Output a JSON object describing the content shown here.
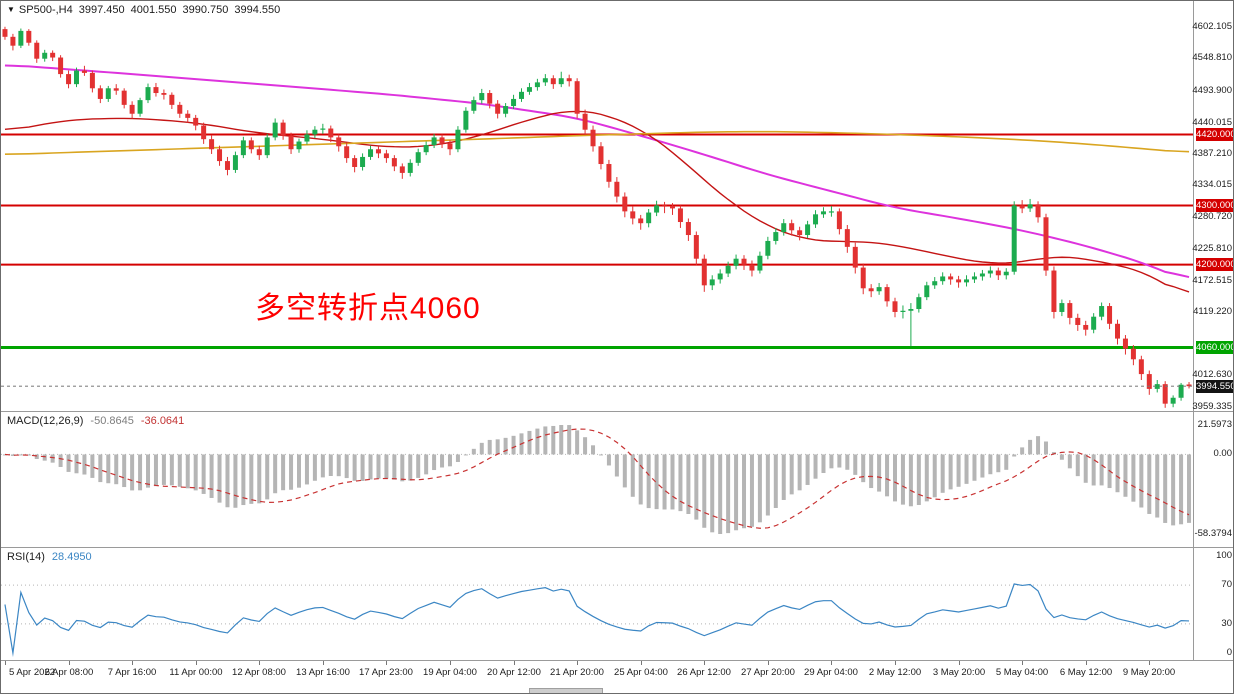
{
  "icons": {
    "collapse_arrow": "▼"
  },
  "header": {
    "symbol": "SP500-,H4",
    "open": "3997.450",
    "high": "4001.550",
    "low": "3990.750",
    "close": "3994.550"
  },
  "annotation": {
    "text": "多空转折点4060",
    "color": "#fe0000"
  },
  "price_axis": {
    "labels": [
      {
        "text": "4602.105",
        "value": 4602.105
      },
      {
        "text": "4548.810",
        "value": 4548.81
      },
      {
        "text": "4493.900",
        "value": 4493.9
      },
      {
        "text": "4440.015",
        "value": 4440.015
      },
      {
        "text": "4387.210",
        "value": 4387.21
      },
      {
        "text": "4334.015",
        "value": 4334.015
      },
      {
        "text": "4280.720",
        "value": 4280.72
      },
      {
        "text": "4225.810",
        "value": 4225.81
      },
      {
        "text": "4172.515",
        "value": 4172.515
      },
      {
        "text": "4119.220",
        "value": 4119.22
      },
      {
        "text": "4012.630",
        "value": 4012.63
      },
      {
        "text": "3959.335",
        "value": 3959.335
      }
    ],
    "badges": [
      {
        "name": "level-badge-4420",
        "text": "4420.000",
        "value": 4420,
        "bg": "#d40000"
      },
      {
        "name": "level-badge-4300",
        "text": "4300.000",
        "value": 4300,
        "bg": "#d40000"
      },
      {
        "name": "level-badge-4200",
        "text": "4200.000",
        "value": 4200,
        "bg": "#d40000"
      },
      {
        "name": "level-badge-4060",
        "text": "4060.000",
        "value": 4060,
        "bg": "#00a400"
      },
      {
        "name": "current-price-badge",
        "text": "3994.550",
        "value": 3994.55,
        "bg": "#141414"
      }
    ]
  },
  "macd_panel": {
    "label": "MACD(12,26,9)",
    "value_main": "-50.8645",
    "value_signal": "-36.0641",
    "axis": [
      {
        "text": "21.5973",
        "value": 21.5973
      },
      {
        "text": "0.00",
        "value": 0
      },
      {
        "text": "-58.3794",
        "value": -58.3794
      }
    ]
  },
  "rsi_panel": {
    "label": "RSI(14)",
    "value": "28.4950",
    "axis": [
      {
        "text": "100",
        "value": 100
      },
      {
        "text": "70",
        "value": 70
      },
      {
        "text": "30",
        "value": 30
      },
      {
        "text": "0",
        "value": 0
      }
    ]
  },
  "time_axis": {
    "candles_per_label": 8,
    "labels": [
      "5 Apr 2022",
      "6 Apr 08:00",
      "7 Apr 16:00",
      "11 Apr 00:00",
      "12 Apr 08:00",
      "13 Apr 16:00",
      "17 Apr 23:00",
      "19 Apr 04:00",
      "20 Apr 12:00",
      "21 Apr 20:00",
      "25 Apr 04:00",
      "26 Apr 12:00",
      "27 Apr 20:00",
      "29 Apr 04:00",
      "2 May 12:00",
      "3 May 20:00",
      "5 May 04:00",
      "6 May 12:00",
      "9 May 20:00"
    ]
  },
  "chart_data": {
    "type": "candlestick",
    "symbol": "SP500-",
    "timeframe": "H4",
    "price_range": [
      3956,
      4632
    ],
    "colors": {
      "up": "#1cab4f",
      "down": "#e23131"
    },
    "hlines": [
      {
        "price": 4420,
        "color": "#d40000",
        "line_width": 2,
        "label": "4420.000"
      },
      {
        "price": 4300,
        "color": "#d40000",
        "line_width": 2,
        "label": "4300.000"
      },
      {
        "price": 4200,
        "color": "#d40000",
        "line_width": 2,
        "label": "4200.000"
      },
      {
        "price": 4060,
        "color": "#00a400",
        "line_width": 3,
        "label": "4060.000"
      }
    ],
    "current_price": {
      "price": 3994.55,
      "label": "3994.550"
    },
    "moving_averages": [
      {
        "name": "ma-slow-magenta",
        "color": "#dd33dd",
        "line_width": 2,
        "points": [
          [
            0,
            4538
          ],
          [
            16,
            4522
          ],
          [
            32,
            4505
          ],
          [
            48,
            4488
          ],
          [
            60,
            4472
          ],
          [
            72,
            4448
          ],
          [
            80,
            4418
          ],
          [
            88,
            4386
          ],
          [
            96,
            4352
          ],
          [
            104,
            4324
          ],
          [
            112,
            4296
          ],
          [
            120,
            4278
          ],
          [
            128,
            4258
          ],
          [
            136,
            4232
          ],
          [
            144,
            4200
          ],
          [
            149,
            4170
          ]
        ]
      },
      {
        "name": "ma-fast-red",
        "color": "#c41414",
        "line_width": 1.4,
        "points": [
          [
            0,
            4425
          ],
          [
            8,
            4445
          ],
          [
            16,
            4448
          ],
          [
            24,
            4440
          ],
          [
            32,
            4422
          ],
          [
            40,
            4412
          ],
          [
            48,
            4398
          ],
          [
            54,
            4400
          ],
          [
            60,
            4418
          ],
          [
            66,
            4446
          ],
          [
            72,
            4464
          ],
          [
            76,
            4452
          ],
          [
            80,
            4430
          ],
          [
            84,
            4392
          ],
          [
            88,
            4342
          ],
          [
            92,
            4298
          ],
          [
            96,
            4264
          ],
          [
            100,
            4244
          ],
          [
            104,
            4238
          ],
          [
            108,
            4240
          ],
          [
            112,
            4233
          ],
          [
            116,
            4222
          ],
          [
            120,
            4210
          ],
          [
            124,
            4201
          ],
          [
            128,
            4203
          ],
          [
            132,
            4216
          ],
          [
            136,
            4210
          ],
          [
            140,
            4199
          ],
          [
            144,
            4186
          ],
          [
            149,
            4140
          ]
        ]
      },
      {
        "name": "ma-long-orange",
        "color": "#d9a520",
        "line_width": 1.6,
        "points": [
          [
            0,
            4386
          ],
          [
            16,
            4393
          ],
          [
            32,
            4400
          ],
          [
            48,
            4407
          ],
          [
            64,
            4414
          ],
          [
            72,
            4418
          ],
          [
            80,
            4421
          ],
          [
            88,
            4424
          ],
          [
            96,
            4425
          ],
          [
            104,
            4423
          ],
          [
            112,
            4420
          ],
          [
            120,
            4416
          ],
          [
            128,
            4411
          ],
          [
            136,
            4404
          ],
          [
            144,
            4395
          ],
          [
            149,
            4389
          ]
        ]
      }
    ],
    "macd": {
      "fast": 12,
      "slow": 26,
      "signal": 9,
      "range": [
        -58.3794,
        21.5973
      ],
      "hist_color": "#b5b5b5",
      "signal_color": "#c83232"
    },
    "rsi": {
      "period": 14,
      "levels": [
        70,
        30
      ],
      "range": [
        0,
        100
      ],
      "color": "#3b86c4"
    },
    "candles": [
      [
        4598,
        4602,
        4580,
        4585
      ],
      [
        4585,
        4590,
        4562,
        4570
      ],
      [
        4570,
        4599,
        4566,
        4595
      ],
      [
        4595,
        4598,
        4570,
        4575
      ],
      [
        4575,
        4579,
        4541,
        4548
      ],
      [
        4548,
        4563,
        4543,
        4558
      ],
      [
        4558,
        4562,
        4544,
        4550
      ],
      [
        4550,
        4554,
        4516,
        4522
      ],
      [
        4522,
        4528,
        4498,
        4505
      ],
      [
        4505,
        4533,
        4500,
        4528
      ],
      [
        4528,
        4536,
        4519,
        4524
      ],
      [
        4524,
        4528,
        4491,
        4498
      ],
      [
        4498,
        4503,
        4473,
        4480
      ],
      [
        4480,
        4502,
        4475,
        4498
      ],
      [
        4498,
        4505,
        4487,
        4494
      ],
      [
        4494,
        4498,
        4464,
        4470
      ],
      [
        4470,
        4476,
        4447,
        4455
      ],
      [
        4455,
        4482,
        4450,
        4478
      ],
      [
        4478,
        4506,
        4473,
        4500
      ],
      [
        4500,
        4507,
        4484,
        4490
      ],
      [
        4490,
        4496,
        4479,
        4487
      ],
      [
        4487,
        4491,
        4463,
        4470
      ],
      [
        4470,
        4475,
        4448,
        4455
      ],
      [
        4455,
        4461,
        4440,
        4448
      ],
      [
        4448,
        4453,
        4427,
        4435
      ],
      [
        4435,
        4440,
        4404,
        4412
      ],
      [
        4412,
        4418,
        4387,
        4395
      ],
      [
        4395,
        4401,
        4367,
        4375
      ],
      [
        4375,
        4382,
        4351,
        4360
      ],
      [
        4360,
        4391,
        4355,
        4385
      ],
      [
        4385,
        4416,
        4380,
        4410
      ],
      [
        4410,
        4415,
        4388,
        4395
      ],
      [
        4395,
        4401,
        4377,
        4385
      ],
      [
        4385,
        4421,
        4380,
        4415
      ],
      [
        4415,
        4447,
        4410,
        4440
      ],
      [
        4440,
        4445,
        4411,
        4418
      ],
      [
        4418,
        4423,
        4387,
        4395
      ],
      [
        4395,
        4413,
        4389,
        4408
      ],
      [
        4408,
        4427,
        4403,
        4420
      ],
      [
        4420,
        4434,
        4414,
        4428
      ],
      [
        4428,
        4438,
        4421,
        4430
      ],
      [
        4430,
        4435,
        4407,
        4415
      ],
      [
        4415,
        4420,
        4391,
        4400
      ],
      [
        4400,
        4406,
        4372,
        4380
      ],
      [
        4380,
        4385,
        4356,
        4365
      ],
      [
        4365,
        4388,
        4359,
        4382
      ],
      [
        4382,
        4401,
        4377,
        4395
      ],
      [
        4395,
        4400,
        4380,
        4388
      ],
      [
        4388,
        4394,
        4372,
        4380
      ],
      [
        4380,
        4385,
        4358,
        4366
      ],
      [
        4366,
        4371,
        4345,
        4355
      ],
      [
        4355,
        4378,
        4349,
        4372
      ],
      [
        4372,
        4396,
        4367,
        4390
      ],
      [
        4390,
        4408,
        4385,
        4402
      ],
      [
        4402,
        4421,
        4397,
        4415
      ],
      [
        4415,
        4420,
        4397,
        4405
      ],
      [
        4405,
        4410,
        4385,
        4395
      ],
      [
        4395,
        4434,
        4390,
        4428
      ],
      [
        4428,
        4466,
        4423,
        4460
      ],
      [
        4460,
        4484,
        4455,
        4478
      ],
      [
        4478,
        4497,
        4472,
        4490
      ],
      [
        4490,
        4495,
        4464,
        4472
      ],
      [
        4472,
        4478,
        4447,
        4455
      ],
      [
        4455,
        4473,
        4449,
        4468
      ],
      [
        4468,
        4487,
        4463,
        4480
      ],
      [
        4480,
        4498,
        4475,
        4492
      ],
      [
        4492,
        4507,
        4487,
        4500
      ],
      [
        4500,
        4514,
        4494,
        4508
      ],
      [
        4508,
        4522,
        4502,
        4515
      ],
      [
        4515,
        4520,
        4497,
        4505
      ],
      [
        4505,
        4526,
        4500,
        4515
      ],
      [
        4515,
        4521,
        4501,
        4510
      ],
      [
        4510,
        4515,
        4447,
        4455
      ],
      [
        4455,
        4462,
        4419,
        4428
      ],
      [
        4428,
        4435,
        4391,
        4400
      ],
      [
        4400,
        4407,
        4361,
        4370
      ],
      [
        4370,
        4377,
        4330,
        4340
      ],
      [
        4340,
        4348,
        4305,
        4315
      ],
      [
        4315,
        4322,
        4280,
        4290
      ],
      [
        4290,
        4298,
        4268,
        4278
      ],
      [
        4278,
        4284,
        4259,
        4270
      ],
      [
        4270,
        4294,
        4263,
        4288
      ],
      [
        4288,
        4308,
        4282,
        4300
      ],
      [
        4300,
        4306,
        4287,
        4298
      ],
      [
        4298,
        4304,
        4284,
        4295
      ],
      [
        4295,
        4300,
        4262,
        4272
      ],
      [
        4272,
        4278,
        4240,
        4250
      ],
      [
        4250,
        4256,
        4199,
        4210
      ],
      [
        4210,
        4217,
        4154,
        4165
      ],
      [
        4165,
        4182,
        4157,
        4175
      ],
      [
        4175,
        4192,
        4168,
        4185
      ],
      [
        4185,
        4205,
        4179,
        4198
      ],
      [
        4198,
        4217,
        4192,
        4210
      ],
      [
        4210,
        4216,
        4191,
        4200
      ],
      [
        4200,
        4207,
        4180,
        4190
      ],
      [
        4190,
        4222,
        4185,
        4215
      ],
      [
        4215,
        4247,
        4209,
        4240
      ],
      [
        4240,
        4262,
        4234,
        4255
      ],
      [
        4255,
        4277,
        4249,
        4270
      ],
      [
        4270,
        4276,
        4249,
        4258
      ],
      [
        4258,
        4264,
        4241,
        4250
      ],
      [
        4250,
        4274,
        4245,
        4268
      ],
      [
        4268,
        4292,
        4262,
        4285
      ],
      [
        4285,
        4297,
        4279,
        4290
      ],
      [
        4290,
        4299,
        4281,
        4290
      ],
      [
        4290,
        4295,
        4251,
        4260
      ],
      [
        4260,
        4267,
        4220,
        4230
      ],
      [
        4230,
        4237,
        4185,
        4195
      ],
      [
        4195,
        4202,
        4150,
        4160
      ],
      [
        4160,
        4167,
        4145,
        4155
      ],
      [
        4155,
        4169,
        4149,
        4162
      ],
      [
        4162,
        4167,
        4129,
        4138
      ],
      [
        4138,
        4144,
        4111,
        4120
      ],
      [
        4120,
        4131,
        4109,
        4122
      ],
      [
        4122,
        4135,
        4062,
        4125
      ],
      [
        4125,
        4151,
        4119,
        4145
      ],
      [
        4145,
        4171,
        4140,
        4165
      ],
      [
        4165,
        4179,
        4159,
        4172
      ],
      [
        4172,
        4187,
        4166,
        4180
      ],
      [
        4180,
        4185,
        4166,
        4175
      ],
      [
        4175,
        4181,
        4161,
        4170
      ],
      [
        4170,
        4182,
        4163,
        4175
      ],
      [
        4175,
        4187,
        4169,
        4180
      ],
      [
        4180,
        4191,
        4173,
        4185
      ],
      [
        4185,
        4197,
        4178,
        4190
      ],
      [
        4190,
        4195,
        4174,
        4182
      ],
      [
        4182,
        4194,
        4175,
        4188
      ],
      [
        4188,
        4307,
        4183,
        4300
      ],
      [
        4300,
        4309,
        4287,
        4295
      ],
      [
        4295,
        4311,
        4289,
        4302
      ],
      [
        4302,
        4307,
        4271,
        4280
      ],
      [
        4280,
        4286,
        4181,
        4190
      ],
      [
        4190,
        4197,
        4109,
        4120
      ],
      [
        4120,
        4141,
        4113,
        4135
      ],
      [
        4135,
        4140,
        4099,
        4110
      ],
      [
        4110,
        4117,
        4088,
        4098
      ],
      [
        4098,
        4105,
        4080,
        4090
      ],
      [
        4090,
        4118,
        4084,
        4112
      ],
      [
        4112,
        4136,
        4106,
        4130
      ],
      [
        4130,
        4135,
        4091,
        4100
      ],
      [
        4100,
        4107,
        4065,
        4075
      ],
      [
        4075,
        4081,
        4048,
        4058
      ],
      [
        4058,
        4064,
        4030,
        4040
      ],
      [
        4040,
        4046,
        4005,
        4015
      ],
      [
        4015,
        4021,
        3980,
        3990
      ],
      [
        3990,
        4005,
        3984,
        3998
      ],
      [
        3998,
        4003,
        3958,
        3965
      ],
      [
        3965,
        3979,
        3959,
        3975
      ],
      [
        3975,
        4000,
        3970,
        3997
      ],
      [
        3997.45,
        4001.55,
        3990.75,
        3994.55
      ]
    ]
  }
}
